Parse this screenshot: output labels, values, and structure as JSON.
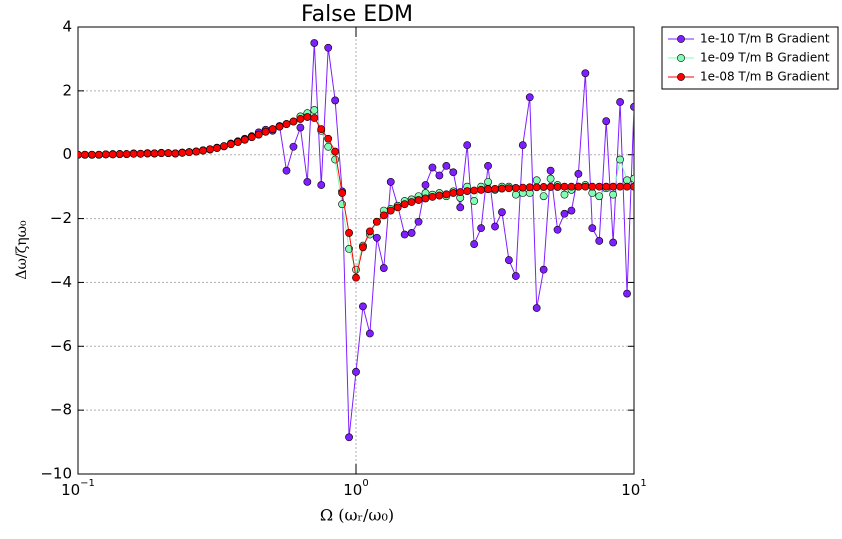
{
  "chart_data": {
    "type": "line",
    "title": "False EDM",
    "xlabel": "Ω (ωᵣ/ω₀)",
    "ylabel": "Δω/ζηω₀",
    "xscale": "log",
    "grid": true,
    "legend": "outside upper right",
    "xlim": [
      0.1,
      10
    ],
    "ylim": [
      -10,
      4
    ],
    "xticks": [
      {
        "value": 0.1,
        "label": "10",
        "exponent": "−1"
      },
      {
        "value": 1,
        "label": "10",
        "exponent": "0"
      },
      {
        "value": 10,
        "label": "10",
        "exponent": "1"
      }
    ],
    "yticks": [
      {
        "value": -10,
        "label": "−10"
      },
      {
        "value": -8,
        "label": "−8"
      },
      {
        "value": -6,
        "label": "−6"
      },
      {
        "value": -4,
        "label": "−4"
      },
      {
        "value": -2,
        "label": "−2"
      },
      0,
      2,
      4
    ],
    "x": [
      0.1,
      0.1059,
      0.1122,
      0.1189,
      0.1259,
      0.1334,
      0.1413,
      0.1496,
      0.1585,
      0.1679,
      0.1778,
      0.1884,
      0.1995,
      0.2113,
      0.2239,
      0.2371,
      0.2512,
      0.2661,
      0.2818,
      0.2985,
      0.3162,
      0.335,
      0.3548,
      0.3758,
      0.3981,
      0.4217,
      0.4467,
      0.4732,
      0.5012,
      0.5309,
      0.5623,
      0.5957,
      0.631,
      0.6683,
      0.7079,
      0.7499,
      0.7943,
      0.8414,
      0.8913,
      0.9441,
      1.0,
      1.0593,
      1.122,
      1.1885,
      1.2589,
      1.3335,
      1.4125,
      1.4962,
      1.5849,
      1.6788,
      1.7783,
      1.8836,
      1.9953,
      2.1135,
      2.2387,
      2.3714,
      2.5119,
      2.6607,
      2.8184,
      2.9854,
      3.1623,
      3.3497,
      3.5481,
      3.7584,
      3.9811,
      4.217,
      4.4668,
      4.7315,
      5.0119,
      5.3088,
      5.6234,
      5.9566,
      6.3096,
      6.6834,
      7.0795,
      7.4989,
      7.9433,
      8.414,
      8.9125,
      9.4406,
      10
    ],
    "series": [
      {
        "name": "1e-10 T/m B Gradient",
        "color": "#7f1fff",
        "edge": "#000000",
        "values": [
          0,
          0,
          0,
          0,
          0.01,
          0.02,
          0.02,
          0.02,
          0.04,
          0.03,
          0.05,
          0.04,
          0.06,
          0.05,
          0.04,
          0.07,
          0.08,
          0.1,
          0.14,
          0.16,
          0.22,
          0.26,
          0.35,
          0.42,
          0.5,
          0.58,
          0.7,
          0.78,
          0.75,
          0.9,
          -0.5,
          0.25,
          0.85,
          -0.85,
          3.5,
          -0.95,
          3.35,
          1.7,
          -1.15,
          -8.85,
          -6.8,
          -4.75,
          -5.6,
          -2.6,
          -3.55,
          -0.85,
          -1.6,
          -2.5,
          -2.45,
          -2.1,
          -0.95,
          -0.4,
          -0.65,
          -0.35,
          -0.55,
          -1.65,
          0.3,
          -2.8,
          -2.3,
          -0.35,
          -2.25,
          -1.8,
          -3.3,
          -3.8,
          0.3,
          1.8,
          -4.8,
          -3.6,
          -0.5,
          -2.35,
          -1.85,
          -1.75,
          -0.6,
          2.55,
          -2.3,
          -2.7,
          1.05,
          -2.75,
          1.65,
          -4.35,
          1.5
        ]
      },
      {
        "name": "1e-09 T/m B Gradient",
        "color": "#80ffb4",
        "edge": "#000000",
        "values": [
          0,
          0,
          0,
          0,
          0.01,
          0.01,
          0.02,
          0.02,
          0.03,
          0.03,
          0.04,
          0.04,
          0.05,
          0.05,
          0.04,
          0.06,
          0.08,
          0.1,
          0.13,
          0.17,
          0.21,
          0.27,
          0.33,
          0.4,
          0.47,
          0.55,
          0.63,
          0.72,
          0.8,
          0.88,
          0.96,
          1.04,
          1.2,
          1.3,
          1.4,
          0.75,
          0.25,
          -0.15,
          -1.55,
          -2.95,
          -3.6,
          -2.85,
          -2.5,
          -2.1,
          -1.75,
          -1.7,
          -1.6,
          -1.45,
          -1.4,
          -1.3,
          -1.2,
          -1.25,
          -1.2,
          -1.3,
          -1.15,
          -1.35,
          -1.0,
          -1.45,
          -1.0,
          -0.85,
          -1.1,
          -1.0,
          -1.0,
          -1.25,
          -1.2,
          -1.2,
          -0.8,
          -1.3,
          -0.75,
          -0.95,
          -1.25,
          -1.1,
          -1.0,
          -0.95,
          -1.2,
          -1.3,
          -1.05,
          -1.25,
          -0.15,
          -0.8,
          -0.75
        ]
      },
      {
        "name": "1e-08 T/m B Gradient",
        "color": "#ff0000",
        "edge": "#000000",
        "values": [
          0,
          0,
          0,
          0,
          0.01,
          0.01,
          0.02,
          0.02,
          0.03,
          0.03,
          0.04,
          0.04,
          0.05,
          0.05,
          0.04,
          0.06,
          0.08,
          0.1,
          0.13,
          0.17,
          0.21,
          0.27,
          0.33,
          0.4,
          0.47,
          0.55,
          0.63,
          0.72,
          0.8,
          0.88,
          0.96,
          1.04,
          1.12,
          1.18,
          1.15,
          0.8,
          0.5,
          0.1,
          -1.2,
          -2.45,
          -3.85,
          -2.9,
          -2.4,
          -2.1,
          -1.9,
          -1.75,
          -1.65,
          -1.55,
          -1.48,
          -1.42,
          -1.37,
          -1.32,
          -1.28,
          -1.24,
          -1.2,
          -1.17,
          -1.14,
          -1.12,
          -1.1,
          -1.08,
          -1.07,
          -1.06,
          -1.05,
          -1.04,
          -1.03,
          -1.02,
          -1.02,
          -1.01,
          -1.01,
          -1.01,
          -1.0,
          -1.0,
          -1.0,
          -1.0,
          -1.0,
          -1.0,
          -1.0,
          -1.0,
          -1.0,
          -1.0,
          -1.0
        ]
      }
    ]
  }
}
